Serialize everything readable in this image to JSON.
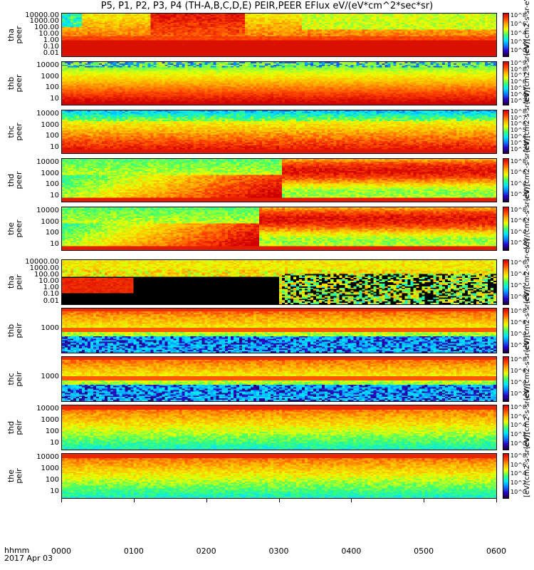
{
  "title": "P5, P1, P2, P3, P4 (TH-A,B,C,D,E) PEIR,PEER EFlux eV/(eV*cm^2*sec*sr)",
  "colorbar_unit": "[eV/(cm2-s-sr-eV)]",
  "footer": {
    "time_label": "hhmm",
    "date_label": "2017 Apr 03"
  },
  "chart_data": {
    "type": "heatmap",
    "x_axis": {
      "ticks": [
        "0000",
        "0100",
        "0200",
        "0300",
        "0400",
        "0500",
        "0600"
      ],
      "range": [
        "0000",
        "0600"
      ]
    },
    "panels": [
      {
        "label": "tha\npeer",
        "probe": "tha",
        "yticks": [
          "10000.00",
          "1000.00",
          "100.00",
          "10.00",
          "1.00",
          "0.10",
          "0.01"
        ],
        "cbar_ticks": [
          "10^8",
          "10^6",
          "10^4",
          "10^2",
          "10^0"
        ],
        "pattern": "tha_peer"
      },
      {
        "label": "thb\npeer",
        "probe": "thb",
        "yticks": [
          "10000",
          "1000",
          "100",
          "10"
        ],
        "cbar_ticks": [
          "10^9",
          "10^8",
          "10^7",
          "10^6",
          "10^5",
          "10^4",
          "10^3"
        ],
        "pattern": "bands_electron"
      },
      {
        "label": "thc\npeer",
        "probe": "thc",
        "yticks": [
          "10000",
          "1000",
          "100",
          "10"
        ],
        "cbar_ticks": [
          "10^8",
          "10^7",
          "10^6",
          "10^5",
          "10^4",
          "10^3",
          "10^2"
        ],
        "pattern": "thc_peer"
      },
      {
        "label": "thd\npeer",
        "probe": "thd",
        "yticks": [
          "10000",
          "1000",
          "100",
          "10"
        ],
        "cbar_ticks": [
          "10^8",
          "10^6",
          "10^4",
          "10^2"
        ],
        "pattern": "injection"
      },
      {
        "label": "the\npeer",
        "probe": "the",
        "yticks": [
          "10000",
          "1000",
          "100",
          "10"
        ],
        "cbar_ticks": [
          "10^8",
          "10^6",
          "10^4",
          "10^2"
        ],
        "pattern": "injection2"
      },
      {
        "label": "tha\npeir",
        "probe": "tha",
        "yticks": [
          "10000.00",
          "1000.00",
          "100.00",
          "10.00",
          "1.00",
          "0.10",
          "0.01"
        ],
        "cbar_ticks": [
          "10^6",
          "10^4",
          "10^2",
          "10^0"
        ],
        "pattern": "tha_peir"
      },
      {
        "label": "thb\npeir",
        "probe": "thb",
        "yticks": [
          "1000"
        ],
        "cbar_ticks": [
          "10^8",
          "10^6",
          "10^4",
          "10^2"
        ],
        "pattern": "ion_bands"
      },
      {
        "label": "thc\npeir",
        "probe": "thc",
        "yticks": [
          "1000"
        ],
        "cbar_ticks": [
          "10^8",
          "10^6",
          "10^4",
          "10^2"
        ],
        "pattern": "ion_bands_c"
      },
      {
        "label": "thd\npeir",
        "probe": "thd",
        "yticks": [
          "10000",
          "1000",
          "100",
          "10"
        ],
        "cbar_ticks": [
          "10^8",
          "10^6",
          "10^4",
          "10^2",
          "10^0"
        ],
        "pattern": "ion_smooth"
      },
      {
        "label": "the\npeir",
        "probe": "the",
        "yticks": [
          "10000",
          "1000",
          "100",
          "10"
        ],
        "cbar_ticks": [
          "10^8",
          "10^6",
          "10^4",
          "10^2",
          "10^0"
        ],
        "pattern": "ion_smooth2"
      }
    ],
    "colormap": [
      "#1a0033",
      "#2b00c8",
      "#0a7bff",
      "#00e5ff",
      "#3cff6e",
      "#eaff00",
      "#ffb000",
      "#ff4500",
      "#d00000"
    ]
  }
}
